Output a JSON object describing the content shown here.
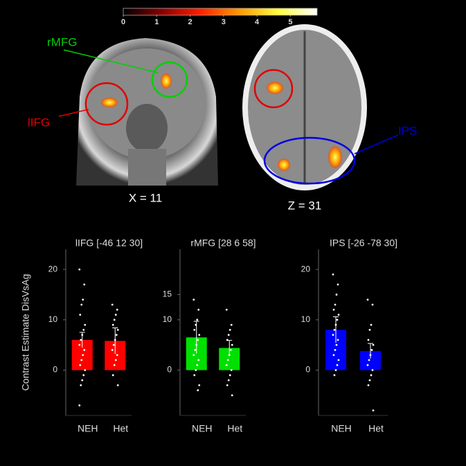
{
  "annotations": {
    "rmfg": "rMFG",
    "lifg": "lIFG",
    "ips": "IPS",
    "x_slice": "X = 11",
    "z_slice": "Z = 31"
  },
  "chart_data": [
    {
      "type": "bar",
      "title": "lIFG [-46 12 30]",
      "ylabel": "Contrast Estimate DisVsAg",
      "color": "#ff0000",
      "categories": [
        "NEH",
        "Het"
      ],
      "values": [
        6,
        5.8
      ],
      "errors": [
        1.5,
        2.6
      ],
      "points": [
        [
          20,
          17,
          14,
          13,
          11,
          9,
          8,
          7,
          6,
          5,
          4,
          3,
          2,
          1,
          0,
          -1,
          -2,
          -3,
          -7
        ],
        [
          13,
          12,
          11,
          10,
          9,
          8,
          7,
          6,
          5,
          4,
          3,
          2,
          1,
          -1,
          -3
        ]
      ],
      "ylim": [
        -9,
        24
      ],
      "yticks": [
        0,
        10,
        20
      ]
    },
    {
      "type": "bar",
      "title": "rMFG [28 6 58]",
      "color": "#00e000",
      "categories": [
        "NEH",
        "Het"
      ],
      "values": [
        6.5,
        4.4
      ],
      "errors": [
        3.2,
        1.5
      ],
      "points": [
        [
          14,
          12,
          10,
          9,
          8,
          7,
          6,
          5,
          4,
          3,
          2,
          1,
          0,
          -1,
          -3,
          -4
        ],
        [
          12,
          9,
          8,
          7,
          6,
          5,
          4,
          3,
          2,
          1,
          0,
          -1,
          -2,
          -3,
          -5
        ]
      ],
      "ylim": [
        -9,
        24
      ],
      "yticks": [
        0,
        10,
        15
      ]
    },
    {
      "type": "bar",
      "title": "IPS [-26 -78 30]",
      "color": "#0000ff",
      "categories": [
        "NEH",
        "Het"
      ],
      "values": [
        8,
        3.8
      ],
      "errors": [
        2.6,
        1.5
      ],
      "points": [
        [
          19,
          17,
          15,
          13,
          12,
          11,
          10,
          9,
          8,
          7,
          6,
          5,
          4,
          3,
          2,
          1,
          0,
          -1
        ],
        [
          14,
          13,
          9,
          8,
          6,
          5,
          4,
          3,
          2,
          1,
          0,
          -1,
          -2,
          -3,
          -8
        ]
      ],
      "ylim": [
        -9,
        24
      ],
      "yticks": [
        0,
        10,
        20
      ]
    },
    {
      "type": "colorbar",
      "colors": [
        "#000000",
        "#8b0000",
        "#ff2000",
        "#ff9a00",
        "#ffff40",
        "#ffffff"
      ],
      "xlim": [
        0,
        5.8
      ],
      "xticks": [
        0,
        1,
        2,
        3,
        4,
        5
      ]
    }
  ]
}
